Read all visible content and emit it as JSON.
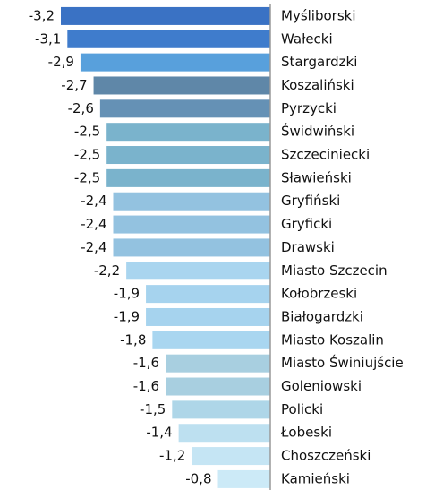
{
  "chart_data": {
    "type": "bar",
    "orientation": "horizontal",
    "categories": [
      "Myśliborski",
      "Wałecki",
      "Stargardzki",
      "Koszaliński",
      "Pyrzycki",
      "Świdwiński",
      "Szczeciniecki",
      "Sławieński",
      "Gryfiński",
      "Gryficki",
      "Drawski",
      "Miasto Szczecin",
      "Kołobrzeski",
      "Białogardzki",
      "Miasto Koszalin",
      "Miasto Świniujście",
      "Goleniowski",
      "Policki",
      "Łobeski",
      "Choszczeński",
      "Kamieński"
    ],
    "values": [
      -3.2,
      -3.1,
      -2.9,
      -2.7,
      -2.6,
      -2.5,
      -2.5,
      -2.5,
      -2.4,
      -2.4,
      -2.4,
      -2.2,
      -1.9,
      -1.9,
      -1.8,
      -1.6,
      -1.6,
      -1.5,
      -1.4,
      -1.2,
      -0.8
    ],
    "value_labels": [
      "-3,2",
      "-3,1",
      "-2,9",
      "-2,7",
      "-2,6",
      "-2,5",
      "-2,5",
      "-2,5",
      "-2,4",
      "-2,4",
      "-2,4",
      "-2,2",
      "-1,9",
      "-1,9",
      "-1,8",
      "-1,6",
      "-1,6",
      "-1,5",
      "-1,4",
      "-1,2",
      "-0,8"
    ],
    "colors": [
      "#3a72c4",
      "#3f7ccc",
      "#58a0dc",
      "#5f87a8",
      "#6591b5",
      "#7ab3cc",
      "#7ab3cc",
      "#7ab3cc",
      "#93c2e0",
      "#93c2e0",
      "#93c2e0",
      "#a9d5ef",
      "#a6d3ee",
      "#a6d3ee",
      "#a9d6f0",
      "#a8cfe0",
      "#a8cfe0",
      "#aed6e8",
      "#bde0f0",
      "#c5e5f4",
      "#cceaf7"
    ],
    "xlim": [
      -3.2,
      0
    ]
  }
}
